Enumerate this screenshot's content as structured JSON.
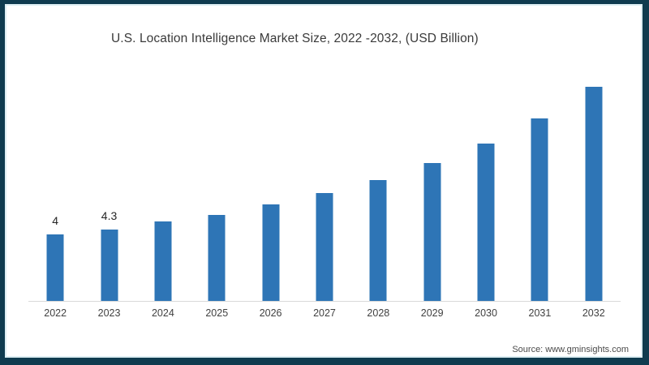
{
  "title": "U.S. Location Intelligence Market Size, 2022 -2032, (USD Billion)",
  "source": "Source: www.gminsights.com",
  "colors": {
    "bar": "#2e75b6",
    "frame_border": "#0f3b4f",
    "axis_line": "#d9d9d9",
    "title_text": "#3a3a3a",
    "axis_label_text": "#404040"
  },
  "chart_data": {
    "type": "bar",
    "title": "U.S. Location Intelligence Market Size, 2022 -2032, (USD Billion)",
    "categories": [
      "2022",
      "2023",
      "2024",
      "2025",
      "2026",
      "2027",
      "2028",
      "2029",
      "2030",
      "2031",
      "2032"
    ],
    "values": [
      4,
      4.3,
      4.8,
      5.2,
      5.8,
      6.5,
      7.3,
      8.3,
      9.5,
      11,
      12.9
    ],
    "data_labels": [
      "4",
      "4.3",
      "",
      "",
      "",
      "",
      "",
      "",
      "",
      "",
      ""
    ],
    "xlabel": "",
    "ylabel": "",
    "ylim": [
      0,
      13.5
    ],
    "grid": false,
    "legend": false,
    "y_axis_visible": false
  }
}
